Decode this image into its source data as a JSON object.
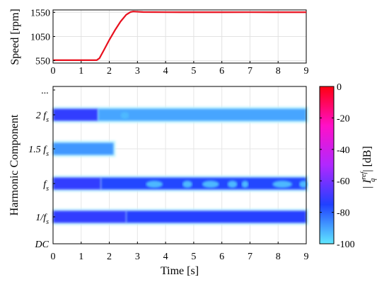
{
  "chart_data": [
    {
      "type": "line",
      "ylabel": "Speed [rpm]",
      "xlim": [
        0,
        9
      ],
      "ylim": [
        500,
        1600
      ],
      "xticks": [
        "0",
        "1",
        "2",
        "3",
        "4",
        "5",
        "6",
        "7",
        "8",
        "9"
      ],
      "yticks": [
        {
          "v": 550,
          "label": "550"
        },
        {
          "v": 1050,
          "label": "1050"
        },
        {
          "v": 1550,
          "label": "1550"
        }
      ],
      "series": [
        {
          "color": "#e8101e",
          "x": [
            0,
            1.55,
            1.65,
            1.8,
            2.0,
            2.2,
            2.4,
            2.6,
            2.75,
            2.85,
            3.0,
            3.2,
            4.0,
            5.0,
            6.0,
            7.0,
            8.0,
            9.0
          ],
          "y": [
            560,
            560,
            600,
            760,
            980,
            1180,
            1360,
            1500,
            1555,
            1568,
            1562,
            1556,
            1553,
            1552,
            1552,
            1553,
            1552,
            1552
          ]
        }
      ]
    },
    {
      "type": "heatmap",
      "xlabel": "Time [s]",
      "ylabel": "Harmonic Component",
      "xlim": [
        0,
        9
      ],
      "xticks": [
        "0",
        "1",
        "2",
        "3",
        "4",
        "5",
        "6",
        "7",
        "8",
        "9"
      ],
      "yticks": [
        {
          "key": "dc",
          "label": "DC"
        },
        {
          "key": "r1",
          "label": "1/f",
          "sub": "s"
        },
        {
          "key": "r2",
          "label": "f",
          "sub": "s"
        },
        {
          "key": "r3",
          "label": "1.5 f",
          "sub": "s"
        },
        {
          "key": "r4",
          "label": "2 f",
          "sub": "s"
        },
        {
          "key": "top",
          "label": "..."
        }
      ],
      "bands": [
        {
          "row": "r1",
          "segments": [
            {
              "x0": 0.0,
              "x1": 2.6,
              "db": -72
            },
            {
              "x0": 2.6,
              "x1": 9.0,
              "db": -74
            }
          ]
        },
        {
          "row": "r2",
          "segments": [
            {
              "x0": 0.0,
              "x1": 1.7,
              "db": -72
            },
            {
              "x0": 1.7,
              "x1": 9.0,
              "db": -76
            }
          ]
        },
        {
          "row": "r3",
          "segments": [
            {
              "x0": 0.0,
              "x1": 2.15,
              "db": -88
            }
          ]
        },
        {
          "row": "r4",
          "segments": [
            {
              "x0": 0.0,
              "x1": 1.6,
              "db": -72
            },
            {
              "x0": 1.6,
              "x1": 9.0,
              "db": -90
            }
          ]
        }
      ],
      "patches": [
        {
          "row": "r2",
          "x": 3.3,
          "w": 0.6,
          "db": -93
        },
        {
          "row": "r2",
          "x": 4.6,
          "w": 0.35,
          "db": -93
        },
        {
          "row": "r2",
          "x": 5.3,
          "w": 0.6,
          "db": -93
        },
        {
          "row": "r2",
          "x": 6.2,
          "w": 0.35,
          "db": -93
        },
        {
          "row": "r2",
          "x": 6.7,
          "w": 0.25,
          "db": -93
        },
        {
          "row": "r2",
          "x": 7.8,
          "w": 0.7,
          "db": -93
        },
        {
          "row": "r2",
          "x": 8.75,
          "w": 0.3,
          "db": -93
        },
        {
          "row": "r4",
          "x": 2.4,
          "w": 0.3,
          "db": -93
        }
      ],
      "colorbar": {
        "label": "|I_q^ref| [dB]",
        "range": [
          -100,
          0
        ],
        "ticks": [
          {
            "v": 0,
            "label": "0"
          },
          {
            "v": -20,
            "label": "-20"
          },
          {
            "v": -40,
            "label": "-40"
          },
          {
            "v": -60,
            "label": "-60"
          },
          {
            "v": -80,
            "label": "-80"
          },
          {
            "v": -100,
            "label": "-100"
          }
        ],
        "colors": [
          "#60e8ff",
          "#2040ff",
          "#b028ff",
          "#ff10c8",
          "#ff0010"
        ]
      }
    }
  ]
}
